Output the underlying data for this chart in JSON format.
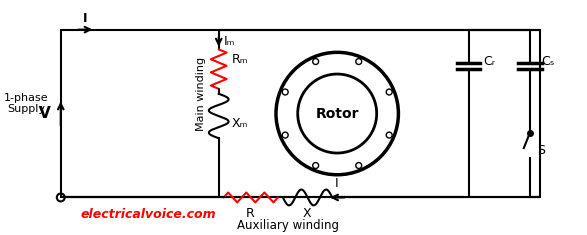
{
  "bg_color": "#ffffff",
  "line_color": "#000000",
  "red_color": "#ff0000",
  "figsize": [
    5.87,
    2.35
  ],
  "dpi": 100,
  "labels": {
    "supply": "1-phase\nSupply",
    "V": "V",
    "I": "I",
    "Im": "Iₘ",
    "Rm": "Rₘ",
    "Xm": "Xₘ",
    "Ra": "R⁡",
    "Xa": "X⁡",
    "Ia": "I⁡",
    "Cr": "Cᵣ",
    "Cs": "Cₛ",
    "S": "S",
    "Rotor": "Rotor",
    "main_winding": "Main winding",
    "aux_winding": "Auxiliary winding",
    "website": "electricalvoice.com"
  }
}
